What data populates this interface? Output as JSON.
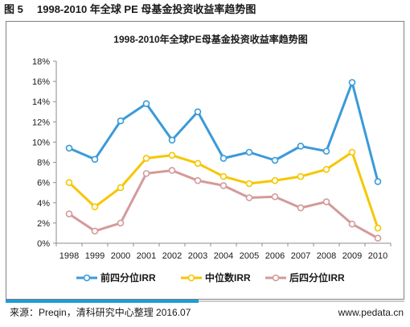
{
  "header": {
    "figure_label": "图 5",
    "figure_title": "1998-2010 年全球 PE 母基金投资收益率趋势图"
  },
  "footer": {
    "source": "来源：Preqin，清科研究中心整理 2016.07",
    "site": "www.pedata.cn"
  },
  "chart_data": {
    "type": "line",
    "title": "1998-2010年全球PE母基金投资收益率趋势图",
    "xlabel": "",
    "ylabel": "",
    "categories": [
      "1998",
      "1999",
      "2000",
      "2001",
      "2002",
      "2003",
      "2004",
      "2005",
      "2006",
      "2007",
      "2008",
      "2009",
      "2010"
    ],
    "y_ticks": [
      "0%",
      "2%",
      "4%",
      "6%",
      "8%",
      "10%",
      "12%",
      "14%",
      "16%",
      "18%"
    ],
    "ylim": [
      0,
      18
    ],
    "grid": false,
    "legend_position": "bottom",
    "series": [
      {
        "name": "前四分位IRR",
        "color": "#3a9ad9",
        "values": [
          9.4,
          8.3,
          12.1,
          13.8,
          10.2,
          13.0,
          8.4,
          9.0,
          8.2,
          9.6,
          9.1,
          15.9,
          6.1
        ]
      },
      {
        "name": "中位数IRR",
        "color": "#f7c600",
        "values": [
          6.0,
          3.6,
          5.5,
          8.4,
          8.7,
          7.9,
          6.6,
          5.9,
          6.2,
          6.6,
          7.3,
          9.0,
          1.5
        ]
      },
      {
        "name": "后四分位IRR",
        "color": "#d49a9a",
        "values": [
          2.9,
          1.2,
          2.0,
          6.9,
          7.2,
          6.2,
          5.7,
          4.5,
          4.6,
          3.5,
          4.1,
          1.9,
          0.5
        ]
      }
    ]
  }
}
